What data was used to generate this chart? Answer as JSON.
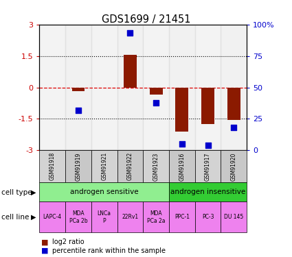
{
  "title": "GDS1699 / 21451",
  "samples": [
    "GSM91918",
    "GSM91919",
    "GSM91921",
    "GSM91922",
    "GSM91923",
    "GSM91916",
    "GSM91917",
    "GSM91920"
  ],
  "log2_ratio": [
    0.0,
    -0.18,
    0.0,
    1.55,
    -0.35,
    -2.1,
    -1.75,
    -1.55
  ],
  "percentile_rank": [
    null,
    32,
    null,
    93,
    38,
    5,
    4,
    18
  ],
  "ylim_left": [
    -3,
    3
  ],
  "ylim_right": [
    0,
    100
  ],
  "yticks_left": [
    -3,
    -1.5,
    0,
    1.5,
    3
  ],
  "yticks_right": [
    0,
    25,
    50,
    75,
    100
  ],
  "ytick_labels_left": [
    "-3",
    "-1.5",
    "0",
    "1.5",
    "3"
  ],
  "ytick_labels_right": [
    "0",
    "25",
    "50",
    "75",
    "100%"
  ],
  "cell_type_groups": [
    {
      "label": "androgen sensitive",
      "start": 0,
      "end": 4,
      "color": "#90ee90"
    },
    {
      "label": "androgen insensitive",
      "start": 5,
      "end": 7,
      "color": "#33cc33"
    }
  ],
  "cell_lines": [
    {
      "label": "LAPC-4",
      "sample_idx": 0
    },
    {
      "label": "MDA\nPCa 2b",
      "sample_idx": 1
    },
    {
      "label": "LNCa\nP",
      "sample_idx": 2
    },
    {
      "label": "22Rv1",
      "sample_idx": 3
    },
    {
      "label": "MDA\nPCa 2a",
      "sample_idx": 4
    },
    {
      "label": "PPC-1",
      "sample_idx": 5
    },
    {
      "label": "PC-3",
      "sample_idx": 6
    },
    {
      "label": "DU 145",
      "sample_idx": 7
    }
  ],
  "bar_color": "#8b1a00",
  "dot_color": "#0000cc",
  "bar_width": 0.5,
  "dot_size": 40,
  "hline_zero_color": "#dd0000",
  "hline_zero_style": "--",
  "dotted_line_color": "#000000",
  "dotted_line_style": ":",
  "grid_hlines": [
    -1.5,
    1.5
  ],
  "sample_bg_colors": [
    "#d3d3d3",
    "#c8c8c8"
  ],
  "left_yaxis_color": "#cc0000",
  "right_yaxis_color": "#0000cc",
  "cell_line_color": "#ee82ee"
}
